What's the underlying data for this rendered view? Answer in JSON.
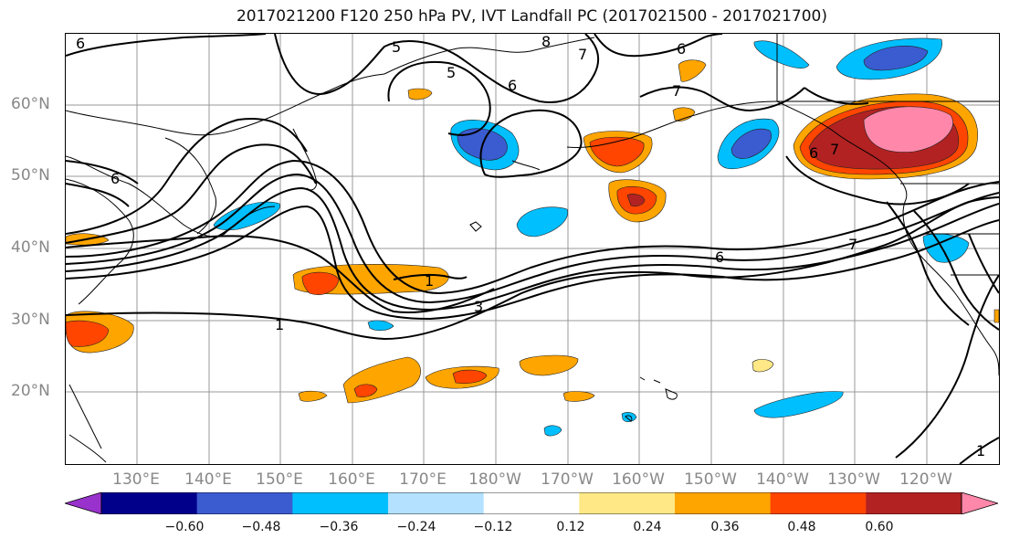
{
  "title": "2017021200 F120 250 hPa PV, IVT Landfall PC (2017021500 - 2017021700)",
  "lat_labels": [
    "60°N",
    "50°N",
    "40°N",
    "30°N",
    "20°N"
  ],
  "lon_labels": [
    "130°E",
    "140°E",
    "150°E",
    "160°E",
    "170°E",
    "180°W",
    "170°W",
    "160°W",
    "150°W",
    "140°W",
    "130°W",
    "120°W"
  ],
  "colorbar": {
    "colors": [
      "#9932cc",
      "#00008b",
      "#3b5bd0",
      "#00bfff",
      "#b3e1ff",
      "#ffffff",
      "#ffe885",
      "#ffa500",
      "#ff4500",
      "#b22222",
      "#ff88aa"
    ],
    "tick_labels": [
      "−0.60",
      "−0.48",
      "−0.36",
      "−0.24",
      "−0.12",
      "0.12",
      "0.24",
      "0.36",
      "0.48",
      "0.60"
    ]
  },
  "contour_labels": [
    "6",
    "5",
    "8",
    "7",
    "6",
    "5",
    "6",
    "7",
    "6",
    "7",
    "6",
    "7",
    "1",
    "3",
    "1",
    "1",
    "6"
  ]
}
